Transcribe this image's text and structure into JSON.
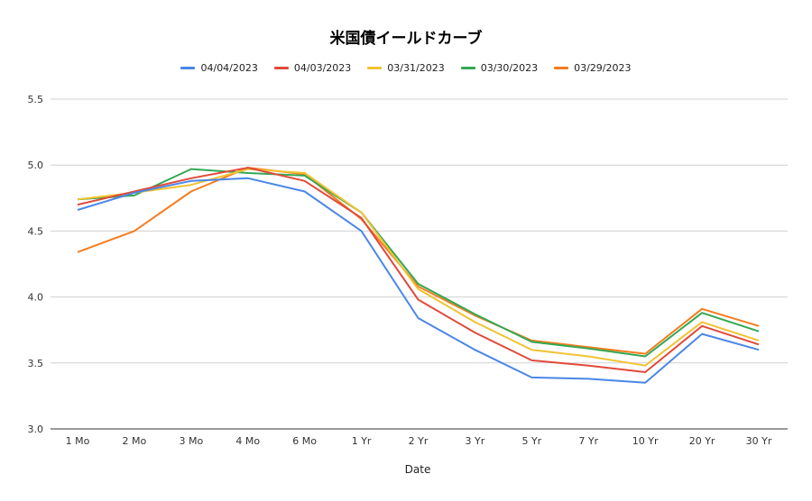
{
  "chart_data": {
    "type": "line",
    "title": "米国債イールドカーブ",
    "xlabel": "Date",
    "ylabel": "",
    "ylim": [
      3.0,
      5.5
    ],
    "yticks": [
      "3.0",
      "3.5",
      "4.0",
      "4.5",
      "5.0",
      "5.5"
    ],
    "grid": true,
    "legend_position": "top-center",
    "categories": [
      "1 Mo",
      "2 Mo",
      "3 Mo",
      "4 Mo",
      "6 Mo",
      "1 Yr",
      "2 Yr",
      "3 Yr",
      "5 Yr",
      "7 Yr",
      "10 Yr",
      "20 Yr",
      "30 Yr"
    ],
    "series": [
      {
        "name": "04/04/2023",
        "color": "#4a86e8",
        "values": [
          4.66,
          4.79,
          4.88,
          4.9,
          4.8,
          4.5,
          3.84,
          3.6,
          3.39,
          3.38,
          3.35,
          3.72,
          3.6
        ]
      },
      {
        "name": "04/03/2023",
        "color": "#e04a3b",
        "values": [
          4.7,
          4.8,
          4.9,
          4.98,
          4.88,
          4.6,
          3.98,
          3.73,
          3.52,
          3.48,
          3.43,
          3.78,
          3.64
        ]
      },
      {
        "name": "03/31/2023",
        "color": "#f1c232",
        "values": [
          4.74,
          4.79,
          4.85,
          4.97,
          4.94,
          4.64,
          4.06,
          3.81,
          3.6,
          3.55,
          3.48,
          3.81,
          3.67
        ]
      },
      {
        "name": "03/30/2023",
        "color": "#34a853",
        "values": [
          4.74,
          4.77,
          4.97,
          4.94,
          4.92,
          4.64,
          4.1,
          3.87,
          3.66,
          3.61,
          3.55,
          3.88,
          3.74
        ]
      },
      {
        "name": "03/29/2023",
        "color": "#f57c1f",
        "values": [
          4.34,
          4.5,
          4.8,
          4.98,
          4.93,
          4.59,
          4.08,
          3.86,
          3.67,
          3.62,
          3.57,
          3.91,
          3.78
        ]
      }
    ]
  }
}
